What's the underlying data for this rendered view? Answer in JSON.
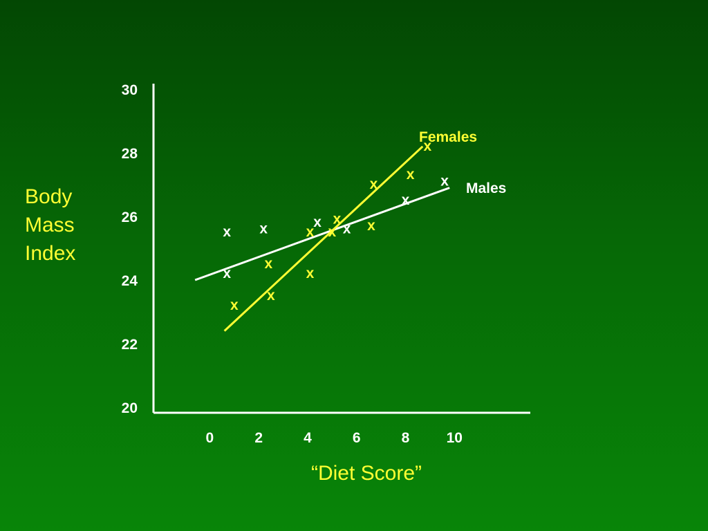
{
  "chart_data": {
    "type": "scatter",
    "xlabel": "“Diet Score”",
    "ylabel_lines": [
      "Body",
      "Mass",
      "Index"
    ],
    "x_ticks": [
      "0",
      "2",
      "4",
      "6",
      "8",
      "10"
    ],
    "y_ticks": [
      "20",
      "22",
      "24",
      "26",
      "28",
      "30"
    ],
    "xlim": [
      -2.3,
      13.1
    ],
    "ylim": [
      20,
      30
    ],
    "grid": false,
    "marker": "x",
    "series": [
      {
        "name": "Males",
        "color": "#ffffff",
        "points": [
          [
            0.7,
            24.2
          ],
          [
            0.7,
            25.5
          ],
          [
            2.2,
            25.6
          ],
          [
            4.4,
            25.8
          ],
          [
            5.6,
            25.6
          ],
          [
            8.0,
            26.5
          ],
          [
            9.6,
            27.1
          ]
        ],
        "fit": [
          [
            -0.6,
            24.0
          ],
          [
            9.8,
            26.9
          ]
        ]
      },
      {
        "name": "Females",
        "color": "#ffff33",
        "points": [
          [
            1.0,
            23.2
          ],
          [
            2.4,
            24.5
          ],
          [
            2.5,
            23.5
          ],
          [
            4.1,
            25.5
          ],
          [
            4.1,
            24.2
          ],
          [
            5.0,
            25.5
          ],
          [
            5.2,
            25.9
          ],
          [
            6.6,
            25.7
          ],
          [
            6.7,
            27.0
          ],
          [
            8.2,
            27.3
          ],
          [
            8.9,
            28.2
          ]
        ],
        "fit": [
          [
            0.6,
            22.4
          ],
          [
            8.7,
            28.2
          ]
        ]
      }
    ]
  }
}
